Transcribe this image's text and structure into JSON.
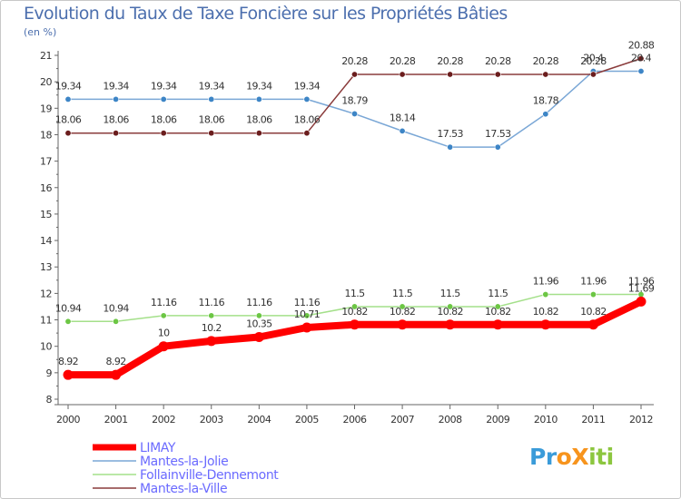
{
  "title": "Evolution du Taux de Taxe Foncière sur les Propriétés Bâties",
  "unit_label": "(en %)",
  "logo": {
    "text": "ProXiti",
    "letters": [
      "P",
      "r",
      "o",
      "X",
      "i",
      "t",
      "i"
    ],
    "colors": [
      "#3a9bd9",
      "#3a9bd9",
      "#f7941d",
      "#f7941d",
      "#8cc63f",
      "#8cc63f",
      "#8cc63f"
    ]
  },
  "chart_data": {
    "type": "line",
    "title": "Evolution du Taux de Taxe Foncière sur les Propriétés Bâties",
    "ylabel": "(en %)",
    "xlabel": "",
    "x": [
      "2000",
      "2001",
      "2002",
      "2003",
      "2004",
      "2005",
      "2006",
      "2007",
      "2008",
      "2009",
      "2010",
      "2011",
      "2012"
    ],
    "ylim": [
      8,
      21
    ],
    "yticks": [
      "8",
      "9",
      "10",
      "11",
      "12",
      "13",
      "14",
      "15",
      "16",
      "17",
      "18",
      "19",
      "20",
      "21"
    ],
    "grid": false,
    "legend_position": "bottom-left",
    "series": [
      {
        "name": "LIMAY",
        "color": "#ff0000",
        "thick": true,
        "values": [
          8.92,
          8.92,
          10,
          10.2,
          10.35,
          10.71,
          10.82,
          10.82,
          10.82,
          10.82,
          10.82,
          10.82,
          11.69
        ],
        "labels": [
          "8.92",
          "8.92",
          "10",
          "10.2",
          "10.35",
          "10.71",
          "10.82",
          "10.82",
          "10.82",
          "10.82",
          "10.82",
          "10.82",
          "11.69"
        ]
      },
      {
        "name": "Mantes-la-Jolie",
        "color": "#7aa7d6",
        "marker": "#3d85c6",
        "values": [
          19.34,
          19.34,
          19.34,
          19.34,
          19.34,
          19.34,
          18.79,
          18.14,
          17.53,
          17.53,
          18.78,
          20.4,
          20.4
        ],
        "labels": [
          "19.34",
          "19.34",
          "19.34",
          "19.34",
          "19.34",
          "19.34",
          "18.79",
          "18.14",
          "17.53",
          "17.53",
          "18.78",
          "20.4",
          "20.4"
        ]
      },
      {
        "name": "Follainville-Dennemont",
        "color": "#a4e08a",
        "marker": "#6cc644",
        "values": [
          10.94,
          10.94,
          11.16,
          11.16,
          11.16,
          11.16,
          11.5,
          11.5,
          11.5,
          11.5,
          11.96,
          11.96,
          11.96
        ],
        "labels": [
          "10.94",
          "10.94",
          "11.16",
          "11.16",
          "11.16",
          "11.16",
          "11.5",
          "11.5",
          "11.5",
          "11.5",
          "11.96",
          "11.96",
          "11.96"
        ]
      },
      {
        "name": "Mantes-la-Ville",
        "color": "#8a3b3b",
        "marker": "#6b1d1d",
        "values": [
          18.06,
          18.06,
          18.06,
          18.06,
          18.06,
          18.06,
          20.28,
          20.28,
          20.28,
          20.28,
          20.28,
          20.28,
          20.88
        ],
        "labels": [
          "18.06",
          "18.06",
          "18.06",
          "18.06",
          "18.06",
          "18.06",
          "20.28",
          "20.28",
          "20.28",
          "20.28",
          "20.28",
          "20.28",
          "20.88"
        ]
      }
    ]
  }
}
